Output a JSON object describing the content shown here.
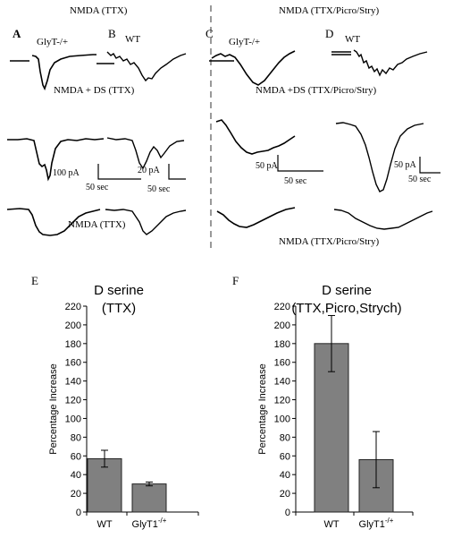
{
  "traces": {
    "header_left": "NMDA (TTX)",
    "header_right": "NMDA (TTX/Picro/Stry)",
    "row2_left": "NMDA + DS (TTX)",
    "row2_right": "NMDA +DS (TTX/Picro/Stry)",
    "row3_left": "NMDA (TTX)",
    "row3_right": "NMDA (TTX/Picro/Stry)",
    "panels": {
      "A": {
        "letter": "A",
        "label": "GlyT-/+"
      },
      "B": {
        "letter": "B",
        "label": "WT"
      },
      "C": {
        "letter": "C",
        "label": "GlyT-/+"
      },
      "D": {
        "letter": "D",
        "label": "WT"
      }
    },
    "scale_bars": {
      "A": {
        "amp": "100 pA",
        "time": "50 sec"
      },
      "B": {
        "amp": "20 pA",
        "time": "50 sec"
      },
      "C": {
        "amp": "50 pA",
        "time": "50 sec"
      },
      "D": {
        "amp": "50 pA",
        "time": "50 sec"
      }
    }
  },
  "chart_data": [
    {
      "type": "bar",
      "panel": "E",
      "title": "D serine",
      "subtitle": "(TTX)",
      "xlabel": "",
      "ylabel": "Percentage Increase",
      "ylim": [
        0,
        220
      ],
      "yticks": [
        0,
        20,
        40,
        60,
        80,
        100,
        120,
        140,
        160,
        180,
        200,
        220
      ],
      "categories": [
        "WT",
        "GlyT1"
      ],
      "category_superscripts": [
        "",
        "-/+"
      ],
      "values": [
        57,
        30
      ],
      "errors": [
        9,
        2
      ],
      "bar_color": "#808080"
    },
    {
      "type": "bar",
      "panel": "F",
      "title": "D serine",
      "subtitle": "(TTX,Picro,Strych)",
      "xlabel": "",
      "ylabel": "Percentage Increase",
      "ylim": [
        0,
        220
      ],
      "yticks": [
        0,
        20,
        40,
        60,
        80,
        100,
        120,
        140,
        160,
        180,
        200,
        220
      ],
      "categories": [
        "WT",
        "GlyT1"
      ],
      "category_superscripts": [
        "",
        "-/+"
      ],
      "values": [
        180,
        56
      ],
      "errors": [
        30,
        30
      ],
      "bar_color": "#808080"
    }
  ]
}
